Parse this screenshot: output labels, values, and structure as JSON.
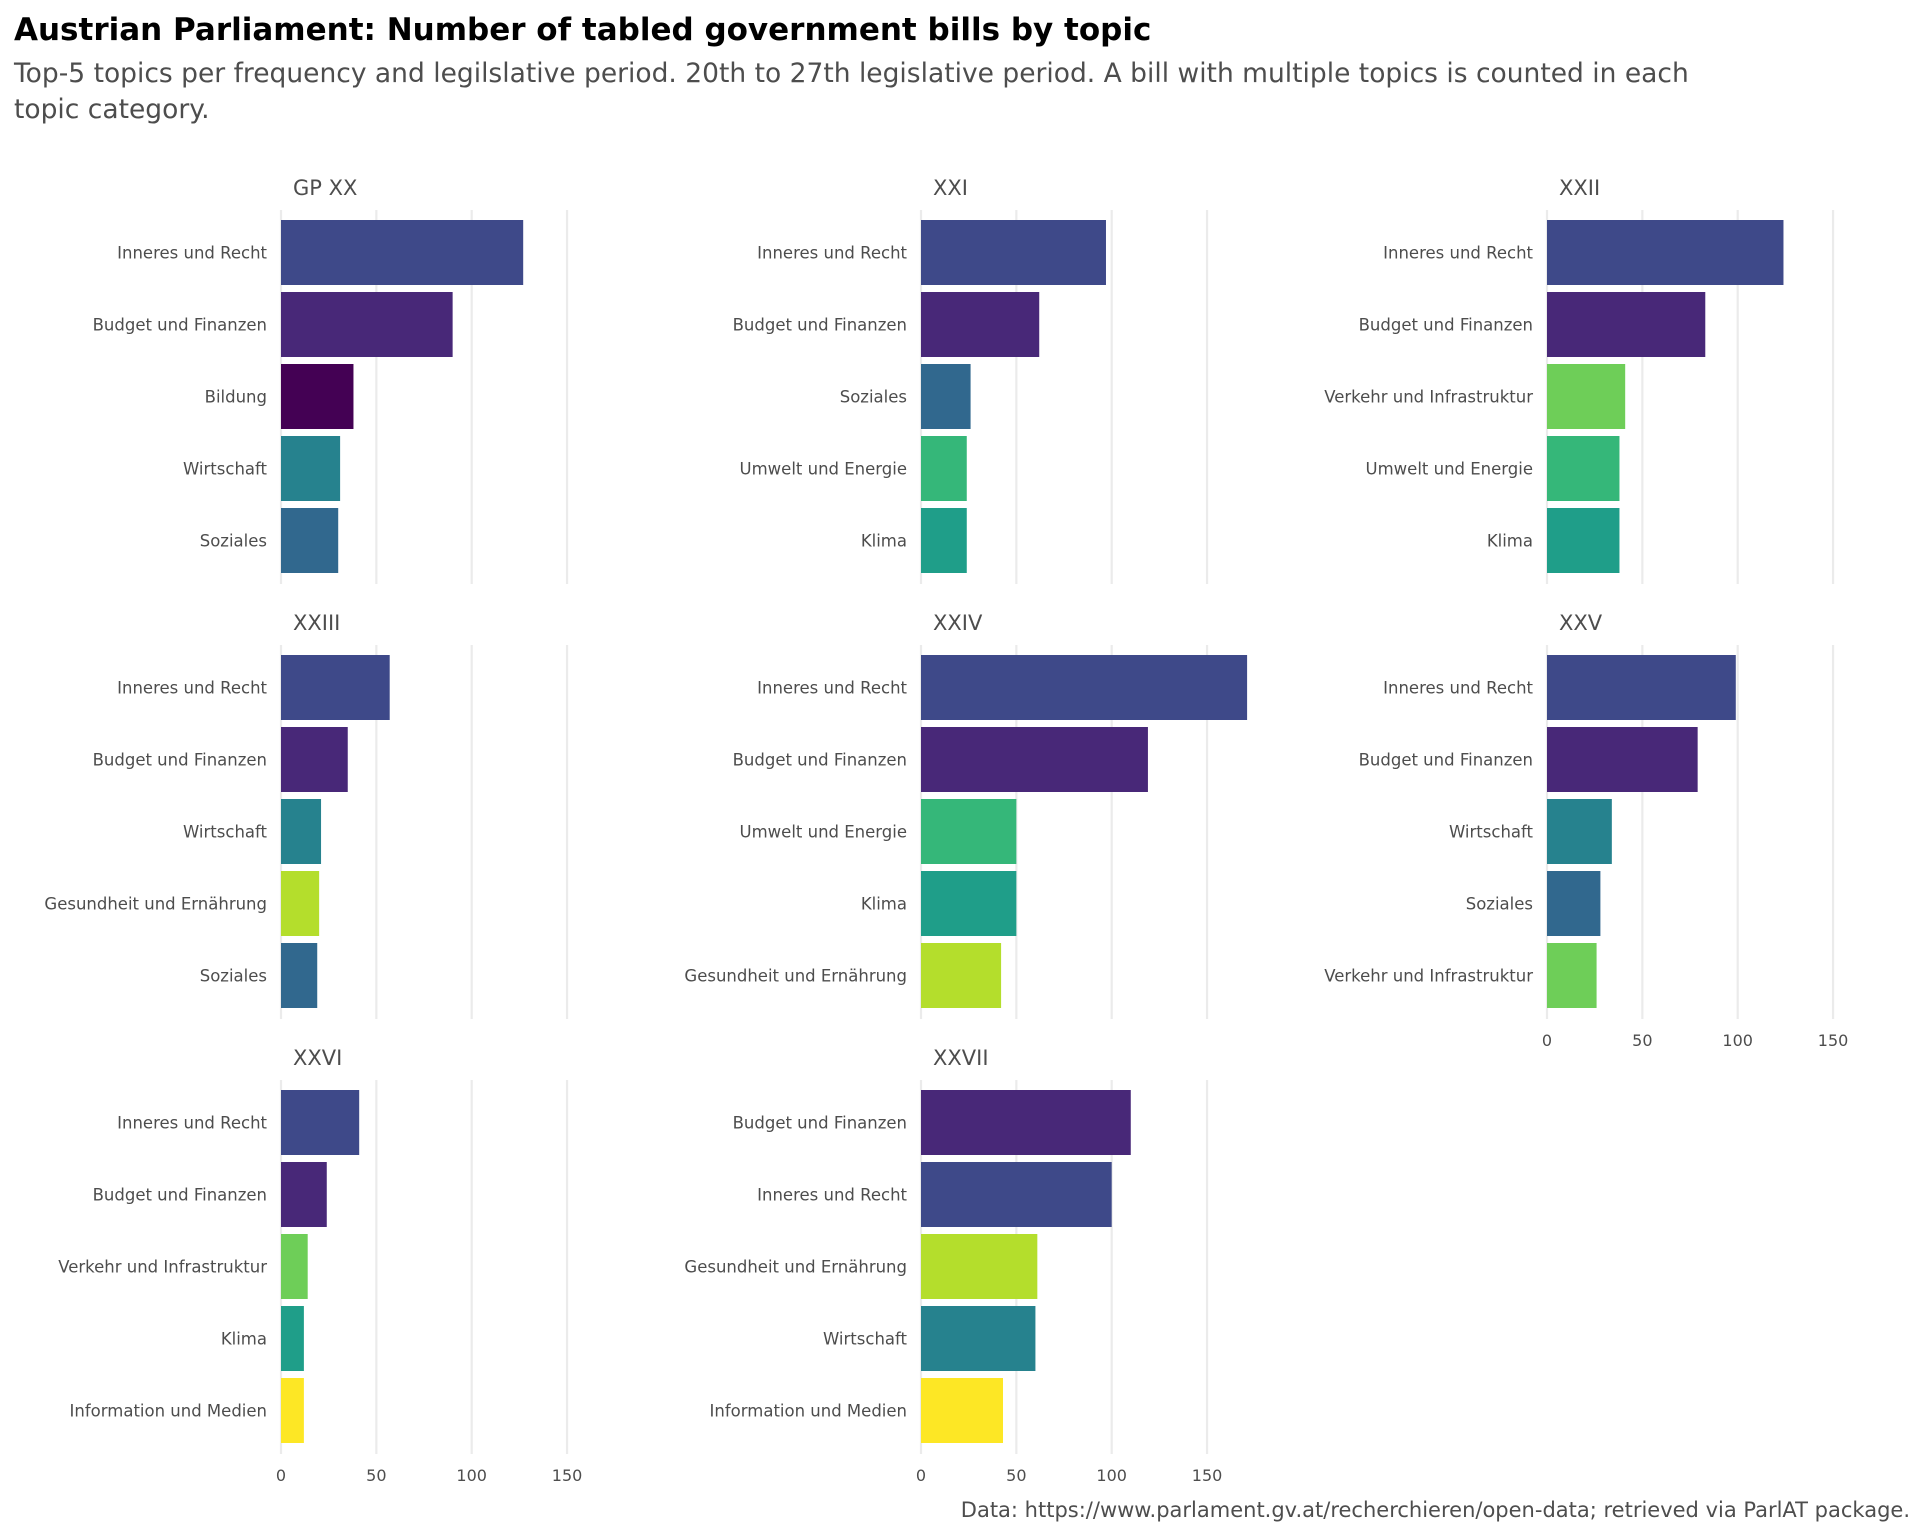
{
  "chart_data": {
    "type": "bar",
    "orientation": "horizontal",
    "title": "Austrian Parliament: Number of tabled government bills by topic",
    "subtitle_lines": [
      "Top-5 topics per frequency and legilslative period. 20th to 27th legislative period. A bill with multiple topics is counted in each",
      "topic category."
    ],
    "caption": "Data: https://www.parlament.gv.at/recherchieren/open-data; retrieved via ParlAT package.",
    "xlabel": "",
    "ylabel": "",
    "xlim": [
      0,
      175
    ],
    "x_ticks": [
      0,
      50,
      100,
      150
    ],
    "grid": true,
    "facet_layout": "3 columns, 3 rows; x-axis tick labels shown on bottom panels of each column",
    "topic_colors": {
      "Bildung": "#440154",
      "Budget und Finanzen": "#482878",
      "Inneres und Recht": "#3e4989",
      "Soziales": "#31688e",
      "Wirtschaft": "#26828e",
      "Klima": "#1f9e89",
      "Umwelt und Energie": "#35b779",
      "Verkehr und Infrastruktur": "#6ece58",
      "Gesundheit und Ernährung": "#b4de2c",
      "Information und Medien": "#fde725"
    },
    "facets": [
      {
        "label": "GP XX",
        "show_x_ticks": false,
        "categories": [
          "Inneres und Recht",
          "Budget und Finanzen",
          "Bildung",
          "Wirtschaft",
          "Soziales"
        ],
        "values": [
          127,
          90,
          38,
          31,
          30
        ]
      },
      {
        "label": "XXI",
        "show_x_ticks": false,
        "categories": [
          "Inneres und Recht",
          "Budget und Finanzen",
          "Soziales",
          "Umwelt und Energie",
          "Klima"
        ],
        "values": [
          97,
          62,
          26,
          24,
          24
        ]
      },
      {
        "label": "XXII",
        "show_x_ticks": false,
        "categories": [
          "Inneres und Recht",
          "Budget und Finanzen",
          "Verkehr und Infrastruktur",
          "Umwelt und Energie",
          "Klima"
        ],
        "values": [
          124,
          83,
          41,
          38,
          38
        ]
      },
      {
        "label": "XXIII",
        "show_x_ticks": false,
        "categories": [
          "Inneres und Recht",
          "Budget und Finanzen",
          "Wirtschaft",
          "Gesundheit und Ernährung",
          "Soziales"
        ],
        "values": [
          57,
          35,
          21,
          20,
          19
        ]
      },
      {
        "label": "XXIV",
        "show_x_ticks": false,
        "categories": [
          "Inneres und Recht",
          "Budget und Finanzen",
          "Umwelt und Energie",
          "Klima",
          "Gesundheit und Ernährung"
        ],
        "values": [
          171,
          119,
          50,
          50,
          42
        ]
      },
      {
        "label": "XXV",
        "show_x_ticks": true,
        "categories": [
          "Inneres und Recht",
          "Budget und Finanzen",
          "Wirtschaft",
          "Soziales",
          "Verkehr und Infrastruktur"
        ],
        "values": [
          99,
          79,
          34,
          28,
          26
        ]
      },
      {
        "label": "XXVI",
        "show_x_ticks": true,
        "categories": [
          "Inneres und Recht",
          "Budget und Finanzen",
          "Verkehr und Infrastruktur",
          "Klima",
          "Information und Medien"
        ],
        "values": [
          41,
          24,
          14,
          12,
          12
        ]
      },
      {
        "label": "XXVII",
        "show_x_ticks": true,
        "categories": [
          "Budget und Finanzen",
          "Inneres und Recht",
          "Gesundheit und Ernährung",
          "Wirtschaft",
          "Information und Medien"
        ],
        "values": [
          110,
          100,
          61,
          60,
          43
        ]
      }
    ]
  }
}
